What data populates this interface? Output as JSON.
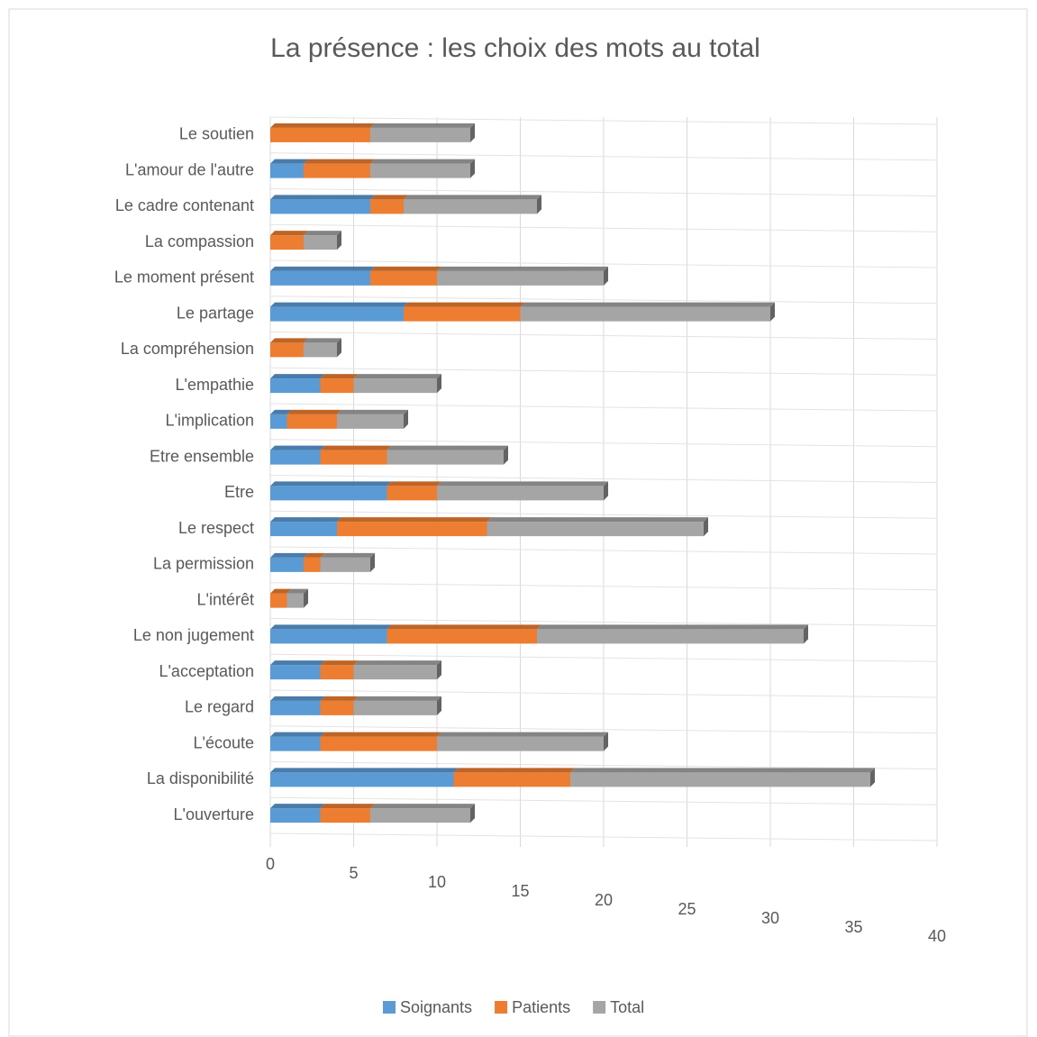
{
  "chart_data": {
    "type": "bar",
    "orientation": "horizontal",
    "stacked": true,
    "title": "La présence : les choix des mots au total",
    "categories": [
      "L'ouverture",
      "La disponibilité",
      "L'écoute",
      "Le regard",
      "L'acceptation",
      "Le non jugement",
      "L'intérêt",
      "La permission",
      "Le respect",
      "Etre",
      "Etre ensemble",
      "L'implication",
      "L'empathie",
      "La compréhension",
      "Le partage",
      "Le moment présent",
      "La compassion",
      "Le cadre contenant",
      "L'amour de l'autre",
      "Le soutien"
    ],
    "series": [
      {
        "name": "Soignants",
        "color": "#5b9bd5",
        "values": [
          3,
          11,
          3,
          3,
          3,
          7,
          0,
          2,
          4,
          7,
          3,
          1,
          3,
          0,
          8,
          6,
          0,
          6,
          2,
          0
        ]
      },
      {
        "name": "Patients",
        "color": "#ed7d31",
        "values": [
          3,
          7,
          7,
          2,
          2,
          9,
          1,
          1,
          9,
          3,
          4,
          3,
          2,
          2,
          7,
          4,
          2,
          2,
          4,
          6
        ]
      },
      {
        "name": "Total",
        "color": "#a5a5a5",
        "values": [
          6,
          18,
          10,
          5,
          5,
          16,
          1,
          3,
          13,
          10,
          7,
          4,
          5,
          2,
          15,
          10,
          2,
          8,
          6,
          6
        ]
      }
    ],
    "xlim": [
      0,
      40
    ],
    "xticks": [
      0,
      5,
      10,
      15,
      20,
      25,
      30,
      35,
      40
    ],
    "grid": true,
    "legend": "bottom"
  }
}
